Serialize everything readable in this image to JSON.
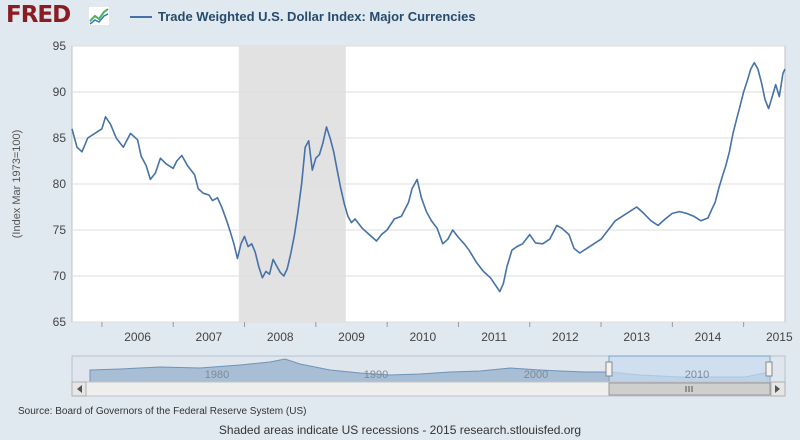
{
  "header": {
    "logo_text": "FRED",
    "legend_label": "Trade Weighted U.S. Dollar Index: Major Currencies",
    "series_color": "#4572a7"
  },
  "chart_data": {
    "type": "line",
    "title": "",
    "ylabel": "(Index Mar 1973=100)",
    "xlabel": "",
    "ylim": [
      65,
      95
    ],
    "xlim": [
      2005.58,
      2015.58
    ],
    "yticks": [
      65,
      70,
      75,
      80,
      85,
      90,
      95
    ],
    "xticks": [
      "2006",
      "2007",
      "2008",
      "2009",
      "2010",
      "2011",
      "2012",
      "2013",
      "2014",
      "2015"
    ],
    "grid": true,
    "legend": "top",
    "recession_shading": [
      [
        2007.92,
        2009.42
      ]
    ],
    "series": [
      {
        "name": "Trade Weighted U.S. Dollar Index: Major Currencies",
        "color": "#4572a7",
        "points": [
          [
            2005.58,
            86.0
          ],
          [
            2005.65,
            84.0
          ],
          [
            2005.72,
            83.5
          ],
          [
            2005.8,
            85.0
          ],
          [
            2005.9,
            85.5
          ],
          [
            2006.0,
            86.0
          ],
          [
            2006.05,
            87.3
          ],
          [
            2006.12,
            86.5
          ],
          [
            2006.2,
            85.0
          ],
          [
            2006.3,
            84.0
          ],
          [
            2006.4,
            85.5
          ],
          [
            2006.5,
            84.8
          ],
          [
            2006.55,
            83.0
          ],
          [
            2006.62,
            82.0
          ],
          [
            2006.68,
            80.5
          ],
          [
            2006.75,
            81.2
          ],
          [
            2006.82,
            82.8
          ],
          [
            2006.9,
            82.2
          ],
          [
            2007.0,
            81.7
          ],
          [
            2007.05,
            82.5
          ],
          [
            2007.12,
            83.1
          ],
          [
            2007.2,
            82.0
          ],
          [
            2007.3,
            81.0
          ],
          [
            2007.35,
            79.5
          ],
          [
            2007.42,
            79.0
          ],
          [
            2007.5,
            78.8
          ],
          [
            2007.55,
            78.2
          ],
          [
            2007.62,
            78.5
          ],
          [
            2007.68,
            77.5
          ],
          [
            2007.75,
            76.0
          ],
          [
            2007.8,
            74.8
          ],
          [
            2007.85,
            73.5
          ],
          [
            2007.9,
            71.9
          ],
          [
            2007.95,
            73.5
          ],
          [
            2008.0,
            74.3
          ],
          [
            2008.05,
            73.2
          ],
          [
            2008.1,
            73.5
          ],
          [
            2008.15,
            72.6
          ],
          [
            2008.2,
            71.0
          ],
          [
            2008.25,
            69.8
          ],
          [
            2008.3,
            70.5
          ],
          [
            2008.35,
            70.2
          ],
          [
            2008.4,
            71.8
          ],
          [
            2008.45,
            71.1
          ],
          [
            2008.5,
            70.4
          ],
          [
            2008.55,
            70.0
          ],
          [
            2008.6,
            70.8
          ],
          [
            2008.65,
            72.5
          ],
          [
            2008.7,
            74.5
          ],
          [
            2008.75,
            77.0
          ],
          [
            2008.8,
            80.0
          ],
          [
            2008.85,
            84.0
          ],
          [
            2008.9,
            84.7
          ],
          [
            2008.95,
            81.5
          ],
          [
            2009.0,
            82.8
          ],
          [
            2009.05,
            83.2
          ],
          [
            2009.1,
            84.5
          ],
          [
            2009.15,
            86.2
          ],
          [
            2009.2,
            85.0
          ],
          [
            2009.25,
            83.5
          ],
          [
            2009.3,
            81.5
          ],
          [
            2009.35,
            79.5
          ],
          [
            2009.4,
            77.8
          ],
          [
            2009.45,
            76.5
          ],
          [
            2009.5,
            75.8
          ],
          [
            2009.55,
            76.2
          ],
          [
            2009.65,
            75.2
          ],
          [
            2009.75,
            74.5
          ],
          [
            2009.85,
            73.8
          ],
          [
            2009.92,
            74.5
          ],
          [
            2010.0,
            75.0
          ],
          [
            2010.1,
            76.2
          ],
          [
            2010.2,
            76.5
          ],
          [
            2010.3,
            78.0
          ],
          [
            2010.35,
            79.5
          ],
          [
            2010.42,
            80.5
          ],
          [
            2010.48,
            78.5
          ],
          [
            2010.55,
            77.0
          ],
          [
            2010.62,
            76.0
          ],
          [
            2010.7,
            75.2
          ],
          [
            2010.78,
            73.5
          ],
          [
            2010.85,
            74.0
          ],
          [
            2010.92,
            75.0
          ],
          [
            2011.0,
            74.2
          ],
          [
            2011.08,
            73.5
          ],
          [
            2011.15,
            72.8
          ],
          [
            2011.25,
            71.5
          ],
          [
            2011.35,
            70.5
          ],
          [
            2011.45,
            69.8
          ],
          [
            2011.52,
            69.0
          ],
          [
            2011.58,
            68.3
          ],
          [
            2011.63,
            69.2
          ],
          [
            2011.68,
            71.0
          ],
          [
            2011.75,
            72.8
          ],
          [
            2011.82,
            73.2
          ],
          [
            2011.9,
            73.5
          ],
          [
            2012.0,
            74.5
          ],
          [
            2012.08,
            73.6
          ],
          [
            2012.18,
            73.5
          ],
          [
            2012.28,
            74.0
          ],
          [
            2012.38,
            75.5
          ],
          [
            2012.45,
            75.2
          ],
          [
            2012.55,
            74.5
          ],
          [
            2012.62,
            73.0
          ],
          [
            2012.7,
            72.5
          ],
          [
            2012.8,
            73.0
          ],
          [
            2012.9,
            73.5
          ],
          [
            2013.0,
            74.0
          ],
          [
            2013.1,
            75.0
          ],
          [
            2013.2,
            76.0
          ],
          [
            2013.3,
            76.5
          ],
          [
            2013.4,
            77.0
          ],
          [
            2013.5,
            77.5
          ],
          [
            2013.6,
            76.8
          ],
          [
            2013.7,
            76.0
          ],
          [
            2013.8,
            75.5
          ],
          [
            2013.9,
            76.2
          ],
          [
            2014.0,
            76.8
          ],
          [
            2014.1,
            77.0
          ],
          [
            2014.2,
            76.8
          ],
          [
            2014.3,
            76.5
          ],
          [
            2014.4,
            76.0
          ],
          [
            2014.5,
            76.3
          ],
          [
            2014.55,
            77.2
          ],
          [
            2014.6,
            78.0
          ],
          [
            2014.65,
            79.5
          ],
          [
            2014.7,
            80.8
          ],
          [
            2014.75,
            82.0
          ],
          [
            2014.8,
            83.5
          ],
          [
            2014.85,
            85.5
          ],
          [
            2014.9,
            87.0
          ],
          [
            2014.95,
            88.5
          ],
          [
            2015.0,
            90.0
          ],
          [
            2015.05,
            91.2
          ],
          [
            2015.1,
            92.5
          ],
          [
            2015.15,
            93.2
          ],
          [
            2015.2,
            92.5
          ],
          [
            2015.25,
            91.0
          ],
          [
            2015.3,
            89.2
          ],
          [
            2015.35,
            88.2
          ],
          [
            2015.4,
            89.5
          ],
          [
            2015.45,
            90.8
          ],
          [
            2015.5,
            89.5
          ],
          [
            2015.55,
            92.0
          ],
          [
            2015.58,
            92.5
          ]
        ]
      }
    ]
  },
  "navigator": {
    "labels": [
      "1980",
      "1990",
      "2000",
      "2010"
    ]
  },
  "source_text": "Source: Board of Governors of the Federal Reserve System (US)",
  "footer_text": "Shaded areas indicate US recessions - 2015 research.stlouisfed.org"
}
